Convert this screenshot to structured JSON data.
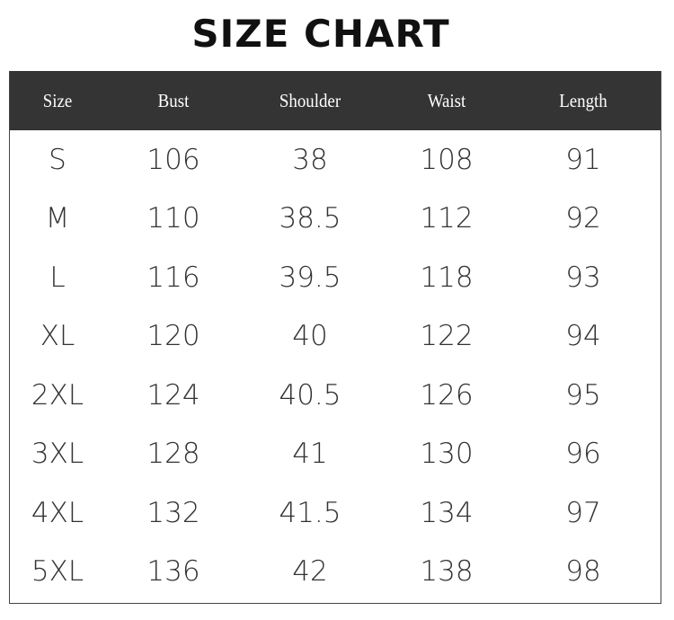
{
  "title": "SIZE CHART",
  "columns": [
    "Size",
    "Bust",
    "Shoulder",
    "Waist",
    "Length"
  ],
  "rows": [
    [
      "S",
      "106",
      "38",
      "108",
      "91"
    ],
    [
      "M",
      "110",
      "38.5",
      "112",
      "92"
    ],
    [
      "L",
      "116",
      "39.5",
      "118",
      "93"
    ],
    [
      "XL",
      "120",
      "40",
      "122",
      "94"
    ],
    [
      "2XL",
      "124",
      "40.5",
      "126",
      "95"
    ],
    [
      "3XL",
      "128",
      "41",
      "130",
      "96"
    ],
    [
      "4XL",
      "132",
      "41.5",
      "134",
      "97"
    ],
    [
      "5XL",
      "136",
      "42",
      "138",
      "98"
    ]
  ],
  "colors": {
    "header_bg": "#343434",
    "header_text": "#ffffff",
    "body_text": "#333333"
  }
}
